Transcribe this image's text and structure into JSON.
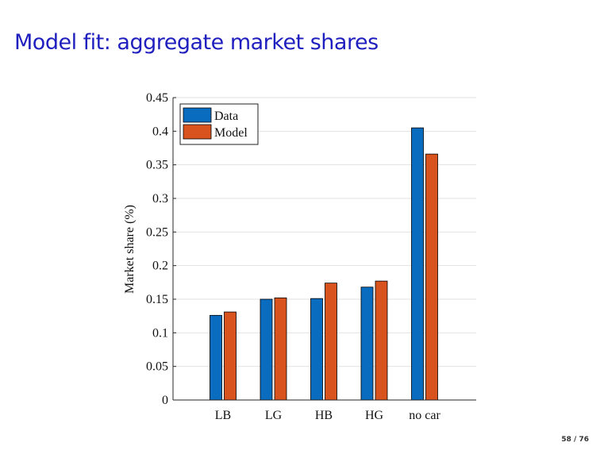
{
  "slide": {
    "title": "Model fit: aggregate market shares",
    "page_number": "58 / 76"
  },
  "colors": {
    "data": "#0a6cbf",
    "model": "#d9531e",
    "grid": "#e2e2e2",
    "axis": "#262626",
    "title": "#1f1fbf"
  },
  "chart_data": {
    "type": "bar",
    "categories": [
      "LB",
      "LG",
      "HB",
      "HG",
      "no car"
    ],
    "series": [
      {
        "name": "Data",
        "values": [
          0.126,
          0.15,
          0.151,
          0.168,
          0.405
        ]
      },
      {
        "name": "Model",
        "values": [
          0.131,
          0.152,
          0.174,
          0.177,
          0.366
        ]
      }
    ],
    "title": "",
    "xlabel": "",
    "ylabel": "Market share (%)",
    "ylim": [
      0,
      0.45
    ],
    "yticks": [
      "0",
      "0.05",
      "0.1",
      "0.15",
      "0.2",
      "0.25",
      "0.3",
      "0.35",
      "0.4",
      "0.45"
    ],
    "grid": "horizontal",
    "legend_position": "top-left"
  }
}
